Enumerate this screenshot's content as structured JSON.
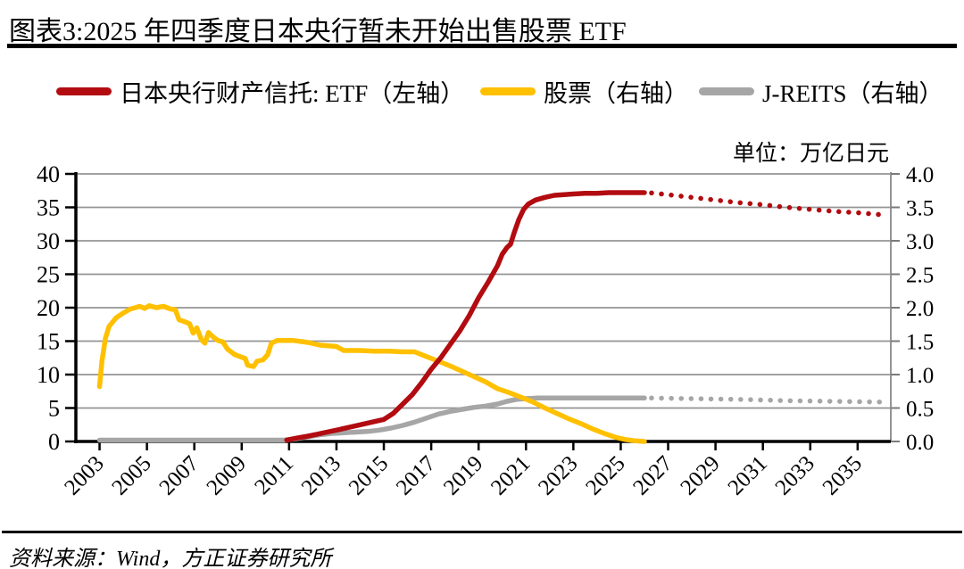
{
  "figure": {
    "title": "图表3:2025 年四季度日本央行暂未开始出售股票 ETF",
    "unit_label": "单位：万亿日元",
    "source": "资料来源：Wind，方正证券研究所"
  },
  "legend": [
    {
      "label": "日本央行财产信托: ETF（左轴）",
      "color": "#b20b10"
    },
    {
      "label": "股票（右轴）",
      "color": "#ffc000"
    },
    {
      "label": "J-REITS（右轴）",
      "color": "#a6a6a6"
    }
  ],
  "chart_data": {
    "type": "line",
    "title": "2025 年四季度日本央行暂未开始出售股票 ETF",
    "unit": "万亿日元",
    "grid": true,
    "legend_position": "top",
    "x_axis": {
      "min": 2002,
      "max": 2036.4,
      "ticks": [
        2003,
        2005,
        2007,
        2009,
        2011,
        2013,
        2015,
        2017,
        2019,
        2021,
        2023,
        2025,
        2027,
        2029,
        2031,
        2033,
        2035
      ]
    },
    "left_axis": {
      "label": "左轴",
      "min": 0,
      "max": 40,
      "step": 5
    },
    "right_axis": {
      "label": "右轴",
      "min": 0,
      "max": 4,
      "step": 0.5
    },
    "series": [
      {
        "id": "jreits",
        "name": "J-REITS（右轴）",
        "axis": "right",
        "color": "#a6a6a6",
        "segments": [
          {
            "style": "solid",
            "points": [
              [
                2003,
                0.02
              ],
              [
                2005,
                0.02
              ],
              [
                2007,
                0.02
              ],
              [
                2009,
                0.02
              ],
              [
                2010.8,
                0.02
              ],
              [
                2011.3,
                0.04
              ],
              [
                2011.8,
                0.07
              ],
              [
                2012.3,
                0.1
              ],
              [
                2012.8,
                0.12
              ],
              [
                2013.3,
                0.13
              ],
              [
                2013.8,
                0.14
              ],
              [
                2014.3,
                0.15
              ],
              [
                2014.8,
                0.17
              ],
              [
                2015.3,
                0.2
              ],
              [
                2015.8,
                0.24
              ],
              [
                2016.3,
                0.29
              ],
              [
                2016.8,
                0.35
              ],
              [
                2017.3,
                0.41
              ],
              [
                2017.8,
                0.45
              ],
              [
                2018.3,
                0.48
              ],
              [
                2018.8,
                0.51
              ],
              [
                2019.3,
                0.53
              ],
              [
                2019.8,
                0.56
              ],
              [
                2020.2,
                0.6
              ],
              [
                2020.6,
                0.63
              ],
              [
                2021,
                0.64
              ],
              [
                2021.5,
                0.65
              ],
              [
                2022,
                0.65
              ],
              [
                2023,
                0.65
              ],
              [
                2024,
                0.65
              ],
              [
                2025,
                0.65
              ],
              [
                2026,
                0.65
              ]
            ]
          },
          {
            "style": "dotted",
            "points": [
              [
                2026.3,
                0.65
              ],
              [
                2028,
                0.64
              ],
              [
                2030,
                0.63
              ],
              [
                2032,
                0.61
              ],
              [
                2034,
                0.6
              ],
              [
                2036,
                0.59
              ]
            ]
          }
        ]
      },
      {
        "id": "stocks",
        "name": "股票（右轴）",
        "axis": "right",
        "color": "#ffc000",
        "segments": [
          {
            "style": "solid",
            "points": [
              [
                2003,
                0.82
              ],
              [
                2003.1,
                1.2
              ],
              [
                2003.25,
                1.55
              ],
              [
                2003.4,
                1.72
              ],
              [
                2003.7,
                1.85
              ],
              [
                2004,
                1.92
              ],
              [
                2004.3,
                1.98
              ],
              [
                2004.5,
                2.0
              ],
              [
                2004.7,
                2.02
              ],
              [
                2004.9,
                1.99
              ],
              [
                2005.1,
                2.03
              ],
              [
                2005.4,
                2.0
              ],
              [
                2005.7,
                2.02
              ],
              [
                2006,
                1.98
              ],
              [
                2006.2,
                1.97
              ],
              [
                2006.35,
                1.82
              ],
              [
                2006.6,
                1.79
              ],
              [
                2006.8,
                1.76
              ],
              [
                2006.95,
                1.62
              ],
              [
                2007.1,
                1.7
              ],
              [
                2007.3,
                1.52
              ],
              [
                2007.45,
                1.47
              ],
              [
                2007.6,
                1.63
              ],
              [
                2007.8,
                1.56
              ],
              [
                2008,
                1.51
              ],
              [
                2008.2,
                1.49
              ],
              [
                2008.4,
                1.38
              ],
              [
                2008.7,
                1.3
              ],
              [
                2009,
                1.26
              ],
              [
                2009.15,
                1.24
              ],
              [
                2009.25,
                1.14
              ],
              [
                2009.5,
                1.12
              ],
              [
                2009.65,
                1.2
              ],
              [
                2009.9,
                1.22
              ],
              [
                2010.1,
                1.3
              ],
              [
                2010.25,
                1.47
              ],
              [
                2010.5,
                1.51
              ],
              [
                2011.2,
                1.51
              ],
              [
                2011.8,
                1.48
              ],
              [
                2012.3,
                1.44
              ],
              [
                2013,
                1.42
              ],
              [
                2013.3,
                1.36
              ],
              [
                2014,
                1.36
              ],
              [
                2014.6,
                1.35
              ],
              [
                2015.2,
                1.35
              ],
              [
                2015.8,
                1.34
              ],
              [
                2016.3,
                1.34
              ],
              [
                2016.8,
                1.27
              ],
              [
                2017.3,
                1.2
              ],
              [
                2017.8,
                1.13
              ],
              [
                2018.3,
                1.05
              ],
              [
                2018.8,
                0.97
              ],
              [
                2019.3,
                0.89
              ],
              [
                2019.8,
                0.79
              ],
              [
                2020.3,
                0.73
              ],
              [
                2020.8,
                0.66
              ],
              [
                2021.3,
                0.59
              ],
              [
                2021.8,
                0.5
              ],
              [
                2022.3,
                0.42
              ],
              [
                2022.8,
                0.34
              ],
              [
                2023.3,
                0.27
              ],
              [
                2023.8,
                0.19
              ],
              [
                2024.3,
                0.12
              ],
              [
                2024.8,
                0.06
              ],
              [
                2025.2,
                0.03
              ],
              [
                2025.6,
                0.01
              ],
              [
                2026,
                0.0
              ]
            ]
          }
        ]
      },
      {
        "id": "boj-etf",
        "name": "日本央行财产信托: ETF（左轴）",
        "axis": "left",
        "color": "#b20b10",
        "segments": [
          {
            "style": "solid",
            "points": [
              [
                2010.9,
                0.2
              ],
              [
                2011.3,
                0.5
              ],
              [
                2011.8,
                0.8
              ],
              [
                2012.2,
                1.1
              ],
              [
                2012.6,
                1.4
              ],
              [
                2013,
                1.7
              ],
              [
                2013.5,
                2.1
              ],
              [
                2014,
                2.5
              ],
              [
                2014.5,
                2.9
              ],
              [
                2015,
                3.3
              ],
              [
                2015.4,
                4.2
              ],
              [
                2015.8,
                5.6
              ],
              [
                2016.2,
                7.0
              ],
              [
                2016.6,
                8.8
              ],
              [
                2017,
                10.8
              ],
              [
                2017.4,
                12.5
              ],
              [
                2017.8,
                14.5
              ],
              [
                2018.2,
                16.5
              ],
              [
                2018.6,
                18.8
              ],
              [
                2019,
                21.5
              ],
              [
                2019.4,
                23.8
              ],
              [
                2019.8,
                26.3
              ],
              [
                2020,
                28.0
              ],
              [
                2020.2,
                29.0
              ],
              [
                2020.35,
                29.5
              ],
              [
                2020.5,
                31.2
              ],
              [
                2020.7,
                33.2
              ],
              [
                2020.9,
                34.7
              ],
              [
                2021.1,
                35.5
              ],
              [
                2021.4,
                36.1
              ],
              [
                2021.8,
                36.5
              ],
              [
                2022.2,
                36.8
              ],
              [
                2022.6,
                36.9
              ],
              [
                2023,
                37.0
              ],
              [
                2023.5,
                37.1
              ],
              [
                2024,
                37.1
              ],
              [
                2024.5,
                37.2
              ],
              [
                2025,
                37.2
              ],
              [
                2025.5,
                37.2
              ],
              [
                2026,
                37.2
              ]
            ]
          },
          {
            "style": "dotted",
            "points": [
              [
                2026.3,
                37.15
              ],
              [
                2027,
                36.9
              ],
              [
                2028,
                36.5
              ],
              [
                2029,
                36.1
              ],
              [
                2030,
                35.7
              ],
              [
                2031,
                35.4
              ],
              [
                2032,
                35.0
              ],
              [
                2033,
                34.7
              ],
              [
                2034,
                34.4
              ],
              [
                2035,
                34.2
              ],
              [
                2036,
                33.9
              ]
            ]
          }
        ]
      }
    ]
  }
}
